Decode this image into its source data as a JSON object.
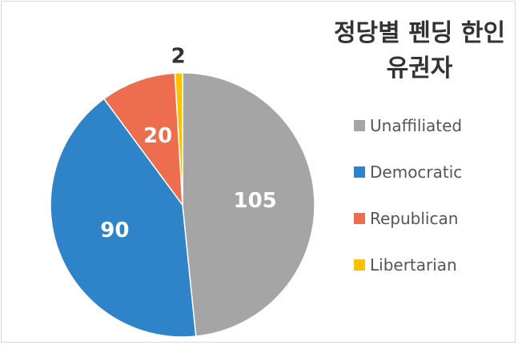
{
  "chart_data": {
    "type": "pie",
    "title": "정당별 펜딩 한인 유권자",
    "categories": [
      "Unaffiliated",
      "Democratic",
      "Republican",
      "Libertarian"
    ],
    "values": [
      105,
      90,
      20,
      2
    ],
    "colors": [
      "#a5a5a5",
      "#2f83c9",
      "#ec6e4e",
      "#ffc000"
    ],
    "legend": "right"
  }
}
